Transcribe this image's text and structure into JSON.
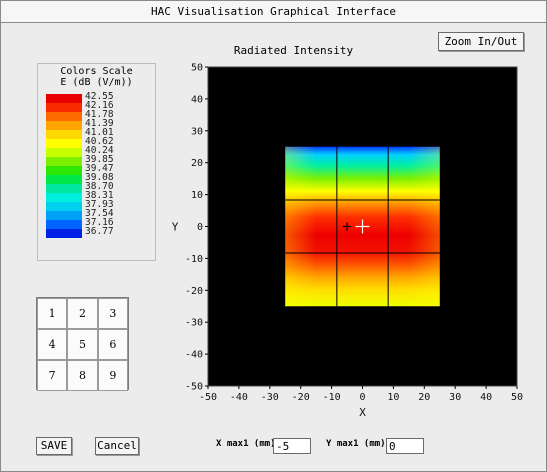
{
  "window": {
    "title": "HAC Visualisation Graphical Interface"
  },
  "toolbar": {
    "zoom_label": "Zoom In/Out"
  },
  "color_scale": {
    "title": "Colors Scale",
    "unit": "E (dB (V/m))",
    "levels": [
      "42.55",
      "42.16",
      "41.78",
      "41.39",
      "41.01",
      "40.62",
      "40.24",
      "39.85",
      "39.47",
      "39.08",
      "38.70",
      "38.31",
      "37.93",
      "37.54",
      "37.16",
      "36.77"
    ],
    "colors": [
      "#e80000",
      "#f82a00",
      "#ff6a00",
      "#ffa400",
      "#ffd800",
      "#ffff00",
      "#c6ff00",
      "#7cf000",
      "#2ce800",
      "#00e84a",
      "#00e8a0",
      "#00f0e0",
      "#00d0f0",
      "#00a0f8",
      "#0064ff",
      "#0020e8"
    ]
  },
  "keypad": {
    "keys": [
      "1",
      "2",
      "3",
      "4",
      "5",
      "6",
      "7",
      "8",
      "9"
    ]
  },
  "chart_data": {
    "type": "heatmap",
    "title": "Radiated Intensity",
    "xlabel": "X",
    "ylabel": "Y",
    "xlim": [
      -50,
      50
    ],
    "ylim": [
      -50,
      50
    ],
    "xticks": [
      -50,
      -40,
      -30,
      -20,
      -10,
      0,
      10,
      20,
      30,
      40,
      50
    ],
    "yticks": [
      50,
      40,
      30,
      20,
      10,
      0,
      -10,
      -20,
      -30,
      -40,
      -50
    ],
    "background": "#000000",
    "field_region": {
      "x": [
        -25,
        25
      ],
      "y": [
        -25,
        25
      ]
    },
    "grid_lines": {
      "x": [
        -8.3,
        8.3
      ],
      "y": [
        -8.3,
        8.3
      ]
    },
    "peak_value_db": 42.55,
    "min_value_db": 36.77,
    "markers": [
      {
        "name": "max-marker",
        "x": -5,
        "y": 0,
        "color": "#000000"
      },
      {
        "name": "crosshair",
        "x": 0,
        "y": 0,
        "color": "#ffffff"
      }
    ]
  },
  "footer": {
    "save_label": "SAVE",
    "cancel_label": "Cancel",
    "x_max_label": "X max1 (mm)",
    "x_max_value": "-5",
    "y_max_label": "Y max1 (mm)",
    "y_max_value": "0"
  }
}
